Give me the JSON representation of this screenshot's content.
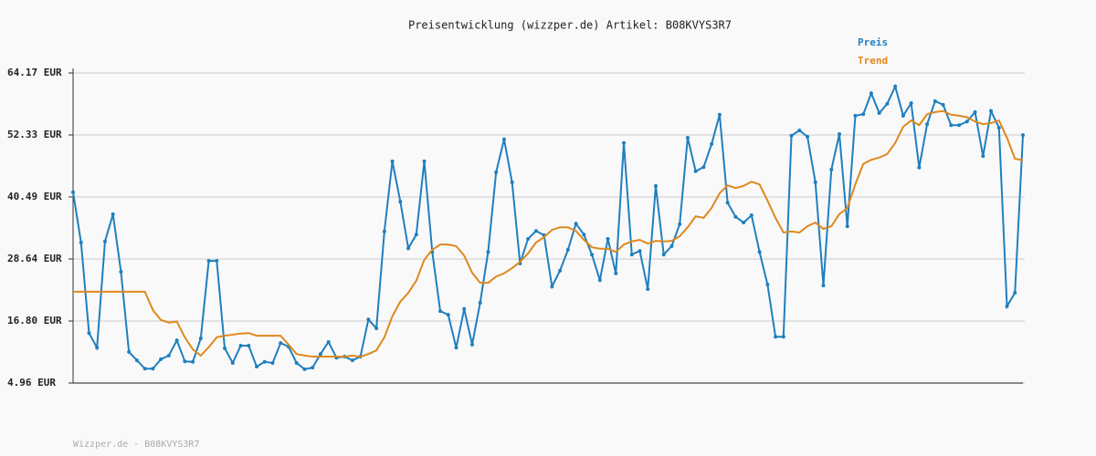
{
  "chart_data": {
    "type": "line",
    "title": "Preisentwicklung (wizzper.de) Artikel: B08KVYS3R7",
    "footer": "Wizzper.de - B08KVYS3R7",
    "legend": "top-right",
    "grid": true,
    "ylim": [
      4.96,
      64.17
    ],
    "yticks": [
      {
        "value": 4.96,
        "label": "4.96 EUR"
      },
      {
        "value": 16.8,
        "label": "16.80 EUR"
      },
      {
        "value": 28.64,
        "label": "28.64 EUR"
      },
      {
        "value": 40.49,
        "label": "40.49 EUR"
      },
      {
        "value": 52.33,
        "label": "52.33 EUR"
      },
      {
        "value": 64.17,
        "label": "64.17 EUR"
      }
    ],
    "series": [
      {
        "name": "Preis",
        "color": "#1f7fbf",
        "markers": true,
        "values": [
          41.4,
          31.8,
          14.5,
          11.7,
          32.0,
          37.2,
          26.2,
          10.9,
          9.3,
          7.7,
          7.7,
          9.5,
          10.2,
          13.1,
          9.1,
          9.0,
          13.5,
          28.3,
          28.3,
          11.6,
          8.8,
          12.1,
          12.1,
          8.1,
          9.0,
          8.8,
          12.6,
          11.9,
          8.8,
          7.6,
          7.9,
          10.5,
          12.8,
          9.8,
          10.0,
          9.3,
          10.0,
          17.1,
          15.4,
          33.9,
          47.3,
          39.6,
          30.7,
          33.3,
          47.3,
          30.0,
          18.7,
          18.0,
          11.7,
          19.1,
          12.3,
          20.3,
          30.0,
          45.2,
          51.5,
          43.3,
          27.8,
          32.5,
          34.0,
          33.2,
          23.4,
          26.4,
          30.4,
          35.4,
          33.3,
          29.5,
          24.6,
          32.5,
          25.9,
          50.8,
          29.5,
          30.2,
          22.9,
          42.6,
          29.5,
          31.1,
          35.3,
          51.8,
          45.4,
          46.2,
          50.6,
          56.2,
          39.4,
          36.7,
          35.6,
          37.0,
          30.0,
          23.8,
          13.8,
          13.8,
          52.2,
          53.2,
          52.0,
          43.3,
          23.6,
          45.7,
          52.5,
          34.9,
          56.0,
          56.3,
          60.3,
          56.5,
          58.3,
          61.6,
          56.0,
          58.4,
          46.1,
          54.4,
          58.8,
          58.1,
          54.2,
          54.2,
          54.9,
          56.7,
          48.3,
          56.9,
          53.7,
          19.6,
          22.2,
          52.3
        ]
      },
      {
        "name": "Trend",
        "color": "#e0881e",
        "markers": false,
        "values": [
          22.4,
          22.4,
          22.4,
          22.4,
          22.4,
          22.4,
          22.4,
          22.4,
          22.4,
          22.4,
          18.9,
          17.0,
          16.5,
          16.7,
          13.7,
          11.4,
          10.2,
          11.8,
          13.7,
          14.0,
          14.2,
          14.4,
          14.5,
          14.0,
          14.0,
          14.0,
          14.0,
          12.3,
          10.5,
          10.2,
          10.0,
          10.0,
          10.0,
          10.0,
          10.0,
          10.2,
          10.0,
          10.5,
          11.2,
          13.7,
          17.7,
          20.5,
          22.2,
          24.5,
          28.5,
          30.4,
          31.4,
          31.4,
          31.1,
          29.3,
          26.0,
          24.1,
          24.1,
          25.3,
          25.9,
          26.9,
          28.1,
          29.7,
          31.8,
          32.8,
          34.2,
          34.7,
          34.7,
          34.0,
          32.3,
          30.9,
          30.6,
          30.6,
          30.0,
          31.4,
          32.0,
          32.3,
          31.6,
          32.1,
          32.0,
          32.1,
          33.0,
          34.7,
          36.8,
          36.5,
          38.4,
          41.2,
          42.7,
          42.2,
          42.6,
          43.4,
          42.9,
          39.8,
          36.5,
          33.7,
          33.9,
          33.7,
          34.9,
          35.6,
          34.4,
          34.9,
          37.2,
          38.4,
          42.9,
          46.8,
          47.6,
          48.0,
          48.7,
          50.8,
          53.9,
          55.1,
          54.2,
          56.3,
          56.7,
          56.9,
          56.2,
          56.0,
          55.7,
          54.9,
          54.4,
          54.6,
          55.1,
          51.8,
          47.8,
          47.5
        ]
      }
    ]
  }
}
